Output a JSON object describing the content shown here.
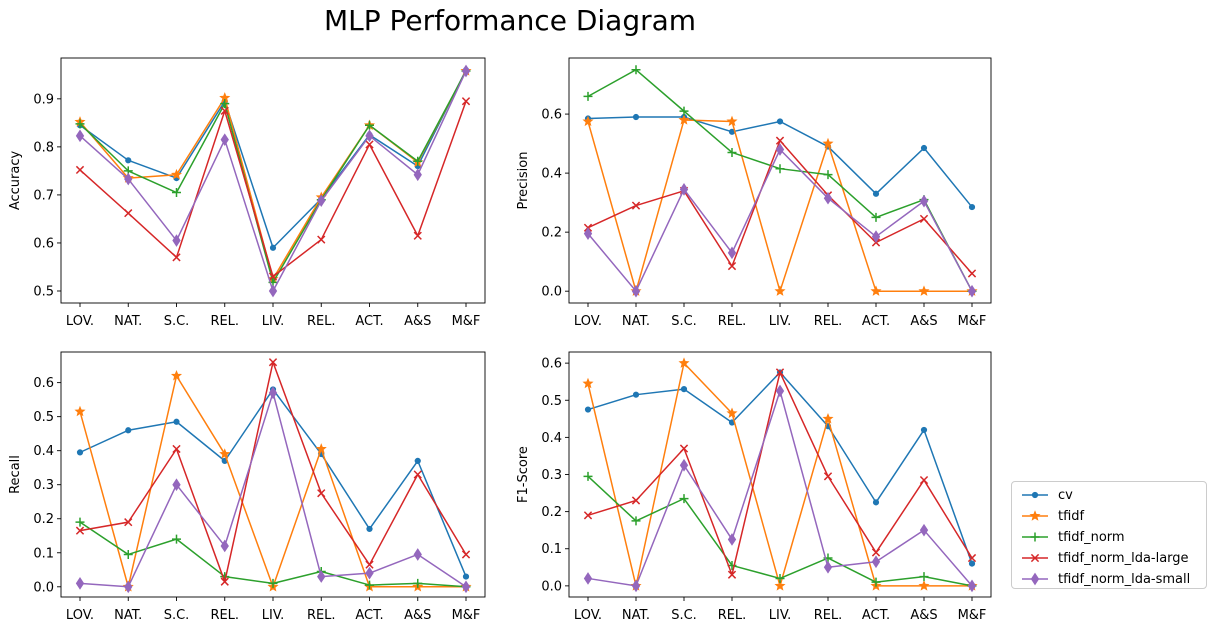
{
  "title": "MLP Performance Diagram",
  "colors": {
    "cv": "#1f77b4",
    "tfidf": "#ff7f0e",
    "tfidf_norm": "#2ca02c",
    "tfidf_norm_lda-large": "#d62728",
    "tfidf_norm_lda-small": "#9467bd"
  },
  "legend": {
    "placement": "right-outside",
    "entries": [
      "cv",
      "tfidf",
      "tfidf_norm",
      "tfidf_norm_lda-large",
      "tfidf_norm_lda-small"
    ]
  },
  "chart_data": [
    {
      "type": "line",
      "title": "",
      "xlabel": "",
      "ylabel": "Accuracy",
      "categories": [
        "LOV.",
        "NAT.",
        "S.C.",
        "REL.",
        "LIV.",
        "REL.",
        "ACT.",
        "A&S",
        "M&F"
      ],
      "ylim": [
        0.475,
        0.985
      ],
      "yticks": [
        0.5,
        0.6,
        0.7,
        0.8,
        0.9
      ],
      "ytick_labels": [
        "0.5",
        "0.6",
        "0.7",
        "0.8",
        "0.9"
      ],
      "grid": false,
      "series": [
        {
          "name": "cv",
          "marker": "point",
          "values": [
            0.845,
            0.772,
            0.735,
            0.895,
            0.59,
            0.692,
            0.825,
            0.76,
            0.96
          ]
        },
        {
          "name": "tfidf",
          "marker": "star",
          "values": [
            0.852,
            0.735,
            0.742,
            0.902,
            0.525,
            0.695,
            0.845,
            0.768,
            0.958
          ]
        },
        {
          "name": "tfidf_norm",
          "marker": "plus",
          "values": [
            0.848,
            0.75,
            0.705,
            0.89,
            0.518,
            0.69,
            0.845,
            0.77,
            0.958
          ]
        },
        {
          "name": "tfidf_norm_lda-large",
          "marker": "x",
          "values": [
            0.752,
            0.662,
            0.57,
            0.875,
            0.53,
            0.607,
            0.805,
            0.615,
            0.895
          ]
        },
        {
          "name": "tfidf_norm_lda-small",
          "marker": "diamond",
          "values": [
            0.823,
            0.733,
            0.605,
            0.815,
            0.5,
            0.688,
            0.823,
            0.742,
            0.958
          ]
        }
      ]
    },
    {
      "type": "line",
      "title": "",
      "xlabel": "",
      "ylabel": "Precision",
      "categories": [
        "LOV.",
        "NAT.",
        "S.C.",
        "REL.",
        "LIV.",
        "REL.",
        "ACT.",
        "A&S",
        "M&F"
      ],
      "ylim": [
        -0.04,
        0.79
      ],
      "yticks": [
        0.0,
        0.2,
        0.4,
        0.6
      ],
      "ytick_labels": [
        "0.0",
        "0.2",
        "0.4",
        "0.6"
      ],
      "grid": false,
      "series": [
        {
          "name": "cv",
          "marker": "point",
          "values": [
            0.585,
            0.59,
            0.59,
            0.54,
            0.575,
            0.49,
            0.33,
            0.485,
            0.285
          ]
        },
        {
          "name": "tfidf",
          "marker": "star",
          "values": [
            0.575,
            0.0,
            0.58,
            0.575,
            0.0,
            0.5,
            0.0,
            0.0,
            0.0
          ]
        },
        {
          "name": "tfidf_norm",
          "marker": "plus",
          "values": [
            0.66,
            0.75,
            0.61,
            0.47,
            0.415,
            0.395,
            0.25,
            0.31,
            0.0
          ]
        },
        {
          "name": "tfidf_norm_lda-large",
          "marker": "x",
          "values": [
            0.215,
            0.29,
            0.34,
            0.085,
            0.51,
            0.325,
            0.165,
            0.245,
            0.06
          ]
        },
        {
          "name": "tfidf_norm_lda-small",
          "marker": "diamond",
          "values": [
            0.195,
            0.0,
            0.345,
            0.13,
            0.48,
            0.315,
            0.185,
            0.305,
            0.0
          ]
        }
      ]
    },
    {
      "type": "line",
      "title": "",
      "xlabel": "",
      "ylabel": "Recall",
      "categories": [
        "LOV.",
        "NAT.",
        "S.C.",
        "REL.",
        "LIV.",
        "REL.",
        "ACT.",
        "A&S",
        "M&F"
      ],
      "ylim": [
        -0.03,
        0.69
      ],
      "yticks": [
        0.0,
        0.1,
        0.2,
        0.3,
        0.4,
        0.5,
        0.6
      ],
      "ytick_labels": [
        "0.0",
        "0.1",
        "0.2",
        "0.3",
        "0.4",
        "0.5",
        "0.6"
      ],
      "grid": false,
      "series": [
        {
          "name": "cv",
          "marker": "point",
          "values": [
            0.395,
            0.46,
            0.485,
            0.37,
            0.58,
            0.39,
            0.17,
            0.37,
            0.03
          ]
        },
        {
          "name": "tfidf",
          "marker": "star",
          "values": [
            0.515,
            0.0,
            0.62,
            0.39,
            0.0,
            0.405,
            0.0,
            0.0,
            0.0
          ]
        },
        {
          "name": "tfidf_norm",
          "marker": "plus",
          "values": [
            0.19,
            0.095,
            0.14,
            0.03,
            0.01,
            0.045,
            0.005,
            0.01,
            0.0
          ]
        },
        {
          "name": "tfidf_norm_lda-large",
          "marker": "x",
          "values": [
            0.165,
            0.19,
            0.405,
            0.015,
            0.66,
            0.275,
            0.065,
            0.33,
            0.095
          ]
        },
        {
          "name": "tfidf_norm_lda-small",
          "marker": "diamond",
          "values": [
            0.01,
            0.0,
            0.3,
            0.12,
            0.57,
            0.03,
            0.04,
            0.095,
            0.0
          ]
        }
      ]
    },
    {
      "type": "line",
      "title": "",
      "xlabel": "",
      "ylabel": "F1-Score",
      "categories": [
        "LOV.",
        "NAT.",
        "S.C.",
        "REL.",
        "LIV.",
        "REL.",
        "ACT.",
        "A&S",
        "M&F"
      ],
      "ylim": [
        -0.03,
        0.63
      ],
      "yticks": [
        0.0,
        0.1,
        0.2,
        0.3,
        0.4,
        0.5,
        0.6
      ],
      "ytick_labels": [
        "0.0",
        "0.1",
        "0.2",
        "0.3",
        "0.4",
        "0.5",
        "0.6"
      ],
      "grid": false,
      "series": [
        {
          "name": "cv",
          "marker": "point",
          "values": [
            0.475,
            0.515,
            0.53,
            0.44,
            0.575,
            0.43,
            0.225,
            0.42,
            0.06
          ]
        },
        {
          "name": "tfidf",
          "marker": "star",
          "values": [
            0.545,
            0.0,
            0.6,
            0.465,
            0.0,
            0.45,
            0.0,
            0.0,
            0.0
          ]
        },
        {
          "name": "tfidf_norm",
          "marker": "plus",
          "values": [
            0.295,
            0.175,
            0.235,
            0.055,
            0.02,
            0.075,
            0.01,
            0.025,
            0.0
          ]
        },
        {
          "name": "tfidf_norm_lda-large",
          "marker": "x",
          "values": [
            0.19,
            0.23,
            0.37,
            0.03,
            0.575,
            0.295,
            0.09,
            0.285,
            0.075
          ]
        },
        {
          "name": "tfidf_norm_lda-small",
          "marker": "diamond",
          "values": [
            0.02,
            0.0,
            0.325,
            0.125,
            0.525,
            0.05,
            0.065,
            0.15,
            0.0
          ]
        }
      ]
    }
  ]
}
